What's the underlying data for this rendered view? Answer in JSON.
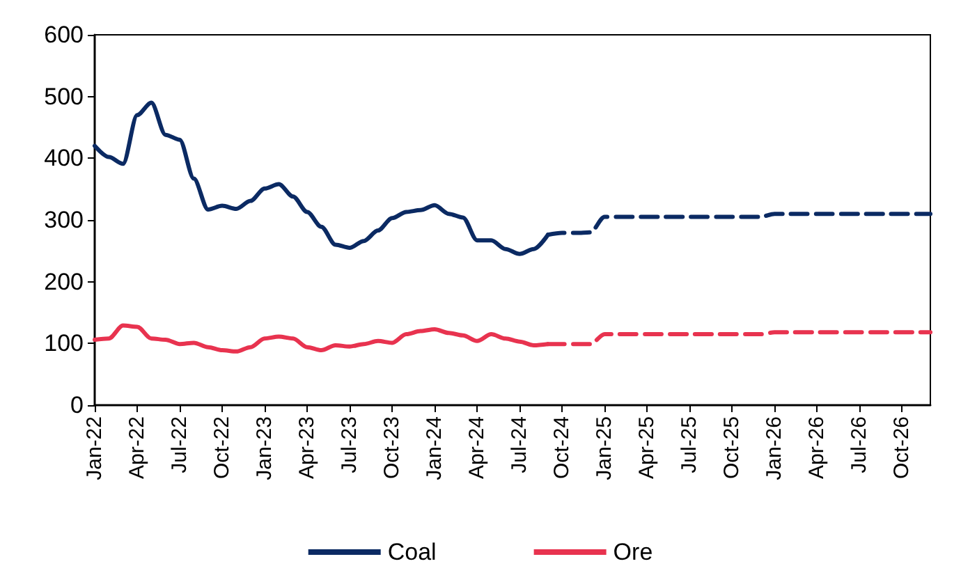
{
  "chart_data": {
    "type": "line",
    "categories": [
      "Jan-22",
      null,
      null,
      "Apr-22",
      null,
      null,
      "Jul-22",
      null,
      null,
      "Oct-22",
      null,
      null,
      "Jan-23",
      null,
      null,
      "Apr-23",
      null,
      null,
      "Jul-23",
      null,
      null,
      "Oct-23",
      null,
      null,
      "Jan-24",
      null,
      null,
      "Apr-24",
      null,
      null,
      "Jul-24",
      null,
      null,
      "Oct-24",
      null,
      null,
      "Jan-25",
      null,
      null,
      "Apr-25",
      null,
      null,
      "Jul-25",
      null,
      null,
      "Oct-25",
      null,
      null,
      "Jan-26",
      null,
      null,
      "Apr-26",
      null,
      null,
      "Jul-26",
      null,
      null,
      "Oct-26",
      null,
      null
    ],
    "series": [
      {
        "name": "Coal",
        "color": "#0b2a63",
        "line_style": "solid",
        "values": [
          420,
          402,
          391,
          470,
          490,
          438,
          430,
          367,
          317,
          323,
          318,
          331,
          351,
          358,
          338,
          313,
          289,
          260,
          255,
          266,
          283,
          303,
          313,
          316,
          324,
          310,
          304,
          267,
          267,
          253,
          245,
          253,
          276,
          null,
          null,
          null,
          null,
          null,
          null,
          null,
          null,
          null,
          null,
          null,
          null,
          null,
          null,
          null,
          null,
          null,
          null,
          null,
          null,
          null,
          null,
          null,
          null,
          null,
          null,
          null
        ]
      },
      {
        "color": "#0b2a63",
        "line_style": "dashed",
        "values": [
          null,
          null,
          null,
          null,
          null,
          null,
          null,
          null,
          null,
          null,
          null,
          null,
          null,
          null,
          null,
          null,
          null,
          null,
          null,
          null,
          null,
          null,
          null,
          null,
          null,
          null,
          null,
          null,
          null,
          null,
          null,
          null,
          276,
          279,
          279,
          280,
          305,
          305,
          305,
          305,
          305,
          305,
          305,
          305,
          305,
          305,
          305,
          305,
          310,
          310,
          310,
          310,
          310,
          310,
          310,
          310,
          310,
          310,
          310,
          310
        ]
      },
      {
        "name": "Ore",
        "color": "#e8334f",
        "line_style": "solid",
        "values": [
          106,
          108,
          129,
          127,
          108,
          106,
          99,
          101,
          94,
          89,
          87,
          94,
          108,
          111,
          108,
          94,
          89,
          97,
          95,
          99,
          104,
          101,
          115,
          120,
          123,
          117,
          113,
          104,
          115,
          108,
          103,
          97,
          99,
          null,
          null,
          null,
          null,
          null,
          null,
          null,
          null,
          null,
          null,
          null,
          null,
          null,
          null,
          null,
          null,
          null,
          null,
          null,
          null,
          null,
          null,
          null,
          null,
          null,
          null,
          null
        ]
      },
      {
        "color": "#e8334f",
        "line_style": "dashed",
        "values": [
          null,
          null,
          null,
          null,
          null,
          null,
          null,
          null,
          null,
          null,
          null,
          null,
          null,
          null,
          null,
          null,
          null,
          null,
          null,
          null,
          null,
          null,
          null,
          null,
          null,
          null,
          null,
          null,
          null,
          null,
          null,
          null,
          99,
          99,
          99,
          99,
          115,
          115,
          115,
          115,
          115,
          115,
          115,
          115,
          115,
          115,
          115,
          115,
          118,
          118,
          118,
          118,
          118,
          118,
          118,
          118,
          118,
          118,
          118,
          118
        ]
      }
    ],
    "ylim": [
      0,
      600
    ],
    "yticks": [
      0,
      100,
      200,
      300,
      400,
      500,
      600
    ],
    "grid": false,
    "legend": "bottom",
    "marker": "none"
  }
}
